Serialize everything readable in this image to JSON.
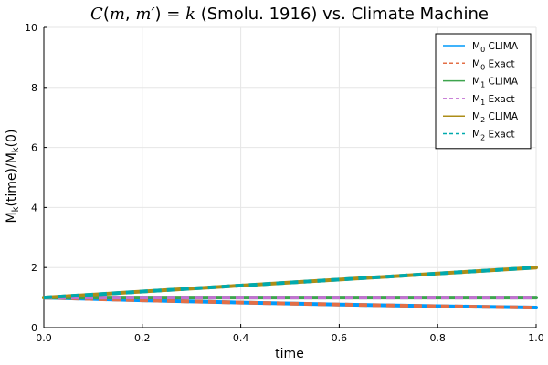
{
  "chart_data": {
    "type": "line",
    "title": {
      "formula_prefix": "C",
      "formula_open": "(",
      "formula_m": "m",
      "formula_comma": ", ",
      "formula_m_prime": "m′",
      "formula_close": ") = ",
      "formula_k": "k",
      "suffix": " (Smolu. 1916) vs. Climate Machine"
    },
    "xlabel": "time",
    "ylabel": {
      "main": "M",
      "sub1": "k",
      "middle": "(time)/M",
      "sub2": "k",
      "end": "(0)"
    },
    "xlim": [
      0,
      1
    ],
    "ylim": [
      0,
      10
    ],
    "xticks": [
      "0.0",
      "0.2",
      "0.4",
      "0.6",
      "0.8",
      "1.0"
    ],
    "yticks": [
      "0",
      "2",
      "4",
      "6",
      "8",
      "10"
    ],
    "grid": true,
    "legend_position": "top-right",
    "x": [
      0.0,
      0.1,
      0.2,
      0.3,
      0.4,
      0.5,
      0.6,
      0.7,
      0.8,
      0.9,
      1.0
    ],
    "series": [
      {
        "name_main": "M",
        "name_sub": "0",
        "name_suffix": " CLIMA",
        "style": "solid",
        "color": "#009AFA",
        "values": [
          1.0,
          0.952,
          0.909,
          0.87,
          0.833,
          0.8,
          0.769,
          0.741,
          0.714,
          0.69,
          0.667
        ]
      },
      {
        "name_main": "M",
        "name_sub": "0",
        "name_suffix": " Exact",
        "style": "dashed",
        "color": "#E36F47",
        "values": [
          1.0,
          0.952,
          0.909,
          0.87,
          0.833,
          0.8,
          0.769,
          0.741,
          0.714,
          0.69,
          0.667
        ]
      },
      {
        "name_main": "M",
        "name_sub": "1",
        "name_suffix": " CLIMA",
        "style": "solid",
        "color": "#3EA44E",
        "values": [
          1.0,
          1.0,
          1.0,
          1.0,
          1.0,
          1.0,
          1.0,
          1.0,
          1.0,
          1.0,
          1.0
        ]
      },
      {
        "name_main": "M",
        "name_sub": "1",
        "name_suffix": " Exact",
        "style": "dashed",
        "color": "#C271D2",
        "values": [
          1.0,
          1.0,
          1.0,
          1.0,
          1.0,
          1.0,
          1.0,
          1.0,
          1.0,
          1.0,
          1.0
        ]
      },
      {
        "name_main": "M",
        "name_sub": "2",
        "name_suffix": " CLIMA",
        "style": "solid",
        "color": "#AC8D18",
        "values": [
          1.0,
          1.1,
          1.2,
          1.3,
          1.4,
          1.5,
          1.6,
          1.7,
          1.8,
          1.9,
          2.0
        ]
      },
      {
        "name_main": "M",
        "name_sub": "2",
        "name_suffix": " Exact",
        "style": "dashed",
        "color": "#00A9AD",
        "values": [
          1.0,
          1.1,
          1.2,
          1.3,
          1.4,
          1.5,
          1.6,
          1.7,
          1.8,
          1.9,
          2.0
        ]
      }
    ]
  }
}
